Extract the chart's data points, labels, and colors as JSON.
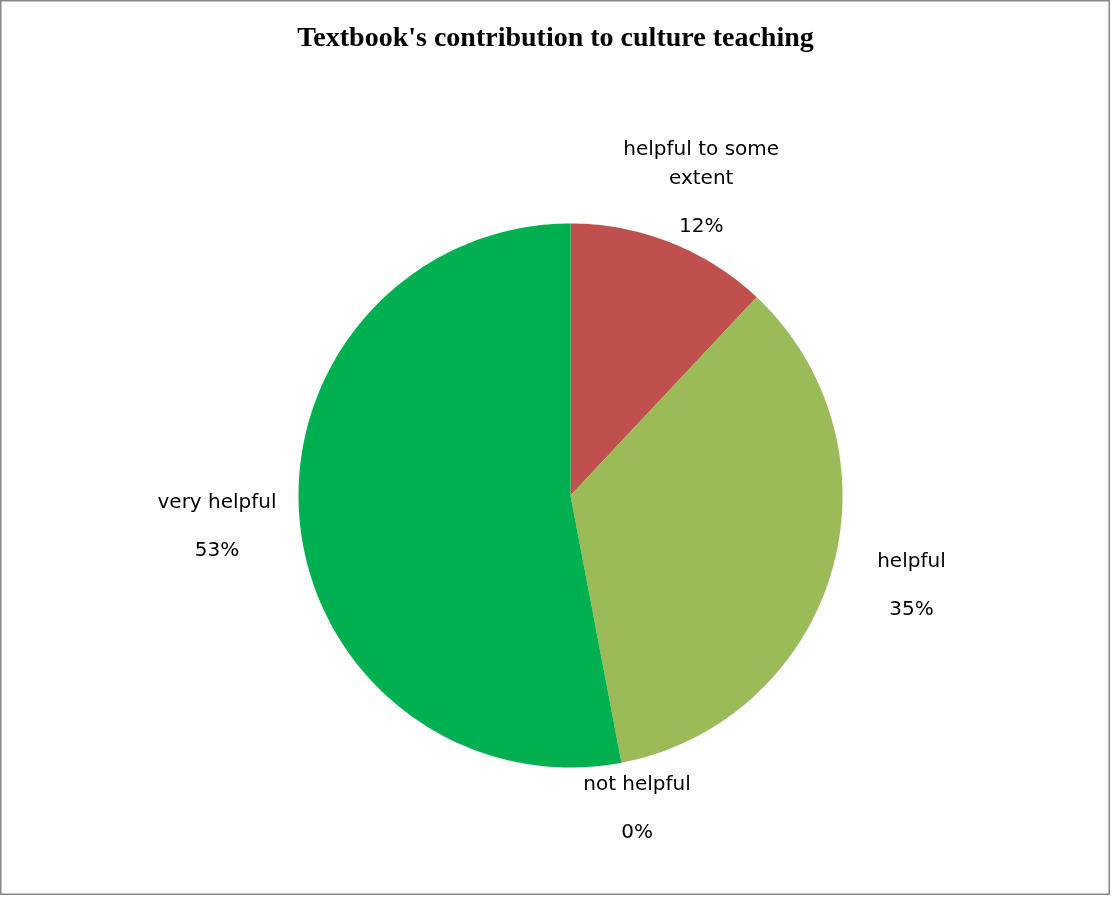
{
  "chart_data": {
    "type": "pie",
    "title": "Textbook's contribution to culture teaching",
    "categories": [
      "helpful to some extent",
      "helpful",
      "not helpful",
      "very helpful"
    ],
    "values": [
      12,
      35,
      0,
      53
    ],
    "colors": [
      "#c0504d",
      "#9bbb59",
      "#4f81bd",
      "#00b050"
    ],
    "value_labels": [
      "12%",
      "35%",
      "0%",
      "53%"
    ]
  }
}
